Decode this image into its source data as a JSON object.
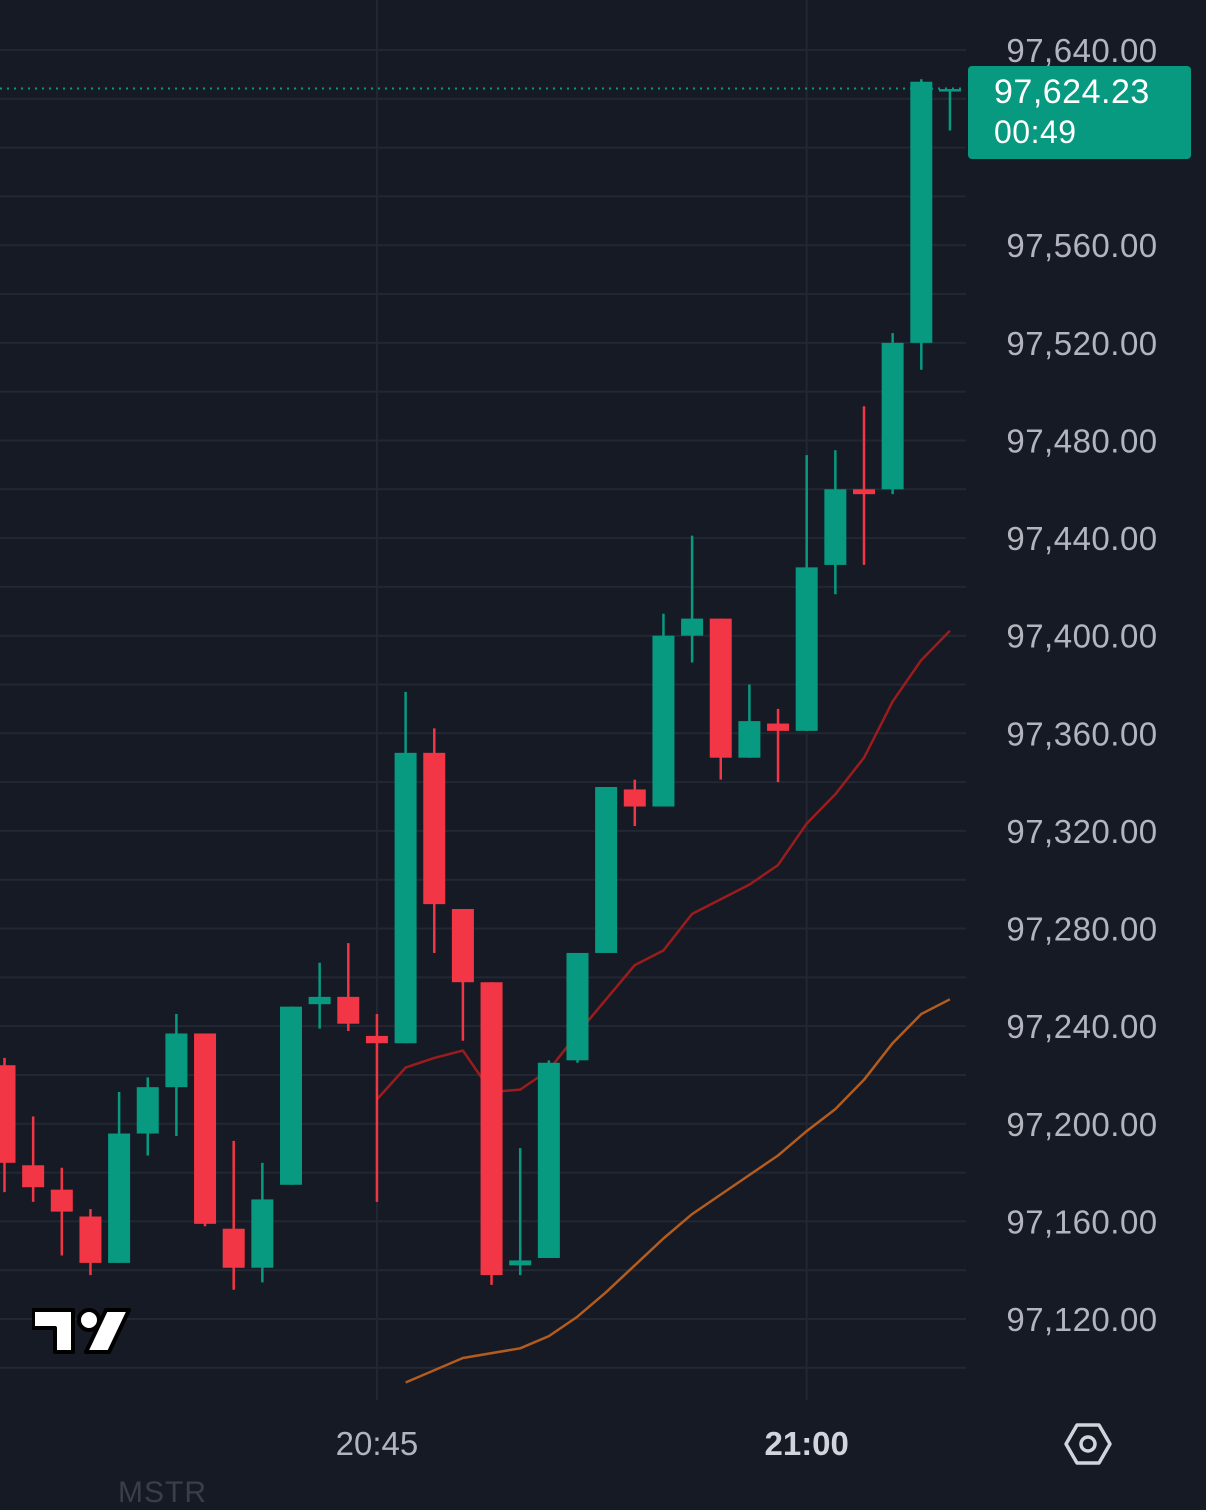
{
  "chart_data": {
    "type": "candlestick",
    "interval_minutes": 1,
    "x_ticks": [
      {
        "label": "20:45",
        "bold": false
      },
      {
        "label": "21:00",
        "bold": true
      }
    ],
    "y_axis": {
      "ylim": [
        97083,
        97651
      ],
      "ticks": [
        "97,120.00",
        "97,160.00",
        "97,200.00",
        "97,240.00",
        "97,280.00",
        "97,320.00",
        "97,360.00",
        "97,400.00",
        "97,440.00",
        "97,480.00",
        "97,520.00",
        "97,560.00",
        "97,640.00"
      ],
      "tick_values": [
        97120,
        97160,
        97200,
        97240,
        97280,
        97320,
        97360,
        97400,
        97440,
        97480,
        97520,
        97560,
        97640
      ]
    },
    "last_price": "97,624.23",
    "countdown": "00:49",
    "colors": {
      "up": "#089981",
      "down": "#f23645",
      "background": "#161a25",
      "grid": "#262a36",
      "ma_fast": "#9b1c1c",
      "ma_slow": "#b35c1e"
    },
    "candles": [
      {
        "t": "20:32",
        "o": 97224,
        "h": 97227,
        "l": 97172,
        "c": 97184
      },
      {
        "t": "20:33",
        "o": 97183,
        "h": 97203,
        "l": 97168,
        "c": 97174
      },
      {
        "t": "20:34",
        "o": 97173,
        "h": 97182,
        "l": 97146,
        "c": 97164
      },
      {
        "t": "20:35",
        "o": 97162,
        "h": 97165,
        "l": 97138,
        "c": 97143
      },
      {
        "t": "20:36",
        "o": 97143,
        "h": 97213,
        "l": 97143,
        "c": 97196
      },
      {
        "t": "20:37",
        "o": 97196,
        "h": 97219,
        "l": 97187,
        "c": 97215
      },
      {
        "t": "20:38",
        "o": 97215,
        "h": 97245,
        "l": 97195,
        "c": 97237
      },
      {
        "t": "20:39",
        "o": 97237,
        "h": 97237,
        "l": 97158,
        "c": 97159
      },
      {
        "t": "20:40",
        "o": 97157,
        "h": 97193,
        "l": 97132,
        "c": 97141
      },
      {
        "t": "20:41",
        "o": 97141,
        "h": 97184,
        "l": 97135,
        "c": 97169
      },
      {
        "t": "20:42",
        "o": 97175,
        "h": 97248,
        "l": 97175,
        "c": 97248
      },
      {
        "t": "20:43",
        "o": 97249,
        "h": 97266,
        "l": 97239,
        "c": 97252
      },
      {
        "t": "20:44",
        "o": 97252,
        "h": 97274,
        "l": 97238,
        "c": 97241
      },
      {
        "t": "20:45",
        "o": 97236,
        "h": 97245,
        "l": 97168,
        "c": 97233
      },
      {
        "t": "20:46",
        "o": 97233,
        "h": 97377,
        "l": 97233,
        "c": 97352
      },
      {
        "t": "20:47",
        "o": 97352,
        "h": 97362,
        "l": 97270,
        "c": 97290
      },
      {
        "t": "20:48",
        "o": 97288,
        "h": 97288,
        "l": 97234,
        "c": 97258
      },
      {
        "t": "20:49",
        "o": 97258,
        "h": 97258,
        "l": 97134,
        "c": 97138
      },
      {
        "t": "20:50",
        "o": 97142,
        "h": 97190,
        "l": 97138,
        "c": 97144
      },
      {
        "t": "20:51",
        "o": 97145,
        "h": 97226,
        "l": 97145,
        "c": 97225
      },
      {
        "t": "20:52",
        "o": 97226,
        "h": 97270,
        "l": 97225,
        "c": 97270
      },
      {
        "t": "20:53",
        "o": 97270,
        "h": 97338,
        "l": 97270,
        "c": 97338
      },
      {
        "t": "20:54",
        "o": 97337,
        "h": 97341,
        "l": 97322,
        "c": 97330
      },
      {
        "t": "20:55",
        "o": 97330,
        "h": 97409,
        "l": 97330,
        "c": 97400
      },
      {
        "t": "20:56",
        "o": 97400,
        "h": 97441,
        "l": 97389,
        "c": 97407
      },
      {
        "t": "20:57",
        "o": 97407,
        "h": 97407,
        "l": 97341,
        "c": 97350
      },
      {
        "t": "20:58",
        "o": 97350,
        "h": 97380,
        "l": 97350,
        "c": 97365
      },
      {
        "t": "20:59",
        "o": 97364,
        "h": 97370,
        "l": 97340,
        "c": 97361
      },
      {
        "t": "21:00",
        "o": 97361,
        "h": 97474,
        "l": 97361,
        "c": 97428
      },
      {
        "t": "21:01",
        "o": 97429,
        "h": 97476,
        "l": 97417,
        "c": 97460
      },
      {
        "t": "21:02",
        "o": 97460,
        "h": 97494,
        "l": 97429,
        "c": 97458
      },
      {
        "t": "21:03",
        "o": 97460,
        "h": 97524,
        "l": 97458,
        "c": 97520
      },
      {
        "t": "21:04",
        "o": 97520,
        "h": 97628,
        "l": 97509,
        "c": 97627
      },
      {
        "t": "21:05",
        "o": 97624,
        "h": 97624,
        "l": 97607,
        "c": 97624
      }
    ],
    "ma_fast": [
      {
        "t": "20:45",
        "v": 97210
      },
      {
        "t": "20:46",
        "v": 97223
      },
      {
        "t": "20:47",
        "v": 97227
      },
      {
        "t": "20:48",
        "v": 97230
      },
      {
        "t": "20:49",
        "v": 97213
      },
      {
        "t": "20:50",
        "v": 97214
      },
      {
        "t": "20:51",
        "v": 97222
      },
      {
        "t": "20:52",
        "v": 97237
      },
      {
        "t": "20:53",
        "v": 97251
      },
      {
        "t": "20:54",
        "v": 97265
      },
      {
        "t": "20:55",
        "v": 97271
      },
      {
        "t": "20:56",
        "v": 97286
      },
      {
        "t": "20:57",
        "v": 97292
      },
      {
        "t": "20:58",
        "v": 97298
      },
      {
        "t": "20:59",
        "v": 97306
      },
      {
        "t": "21:00",
        "v": 97323
      },
      {
        "t": "21:01",
        "v": 97335
      },
      {
        "t": "21:02",
        "v": 97350
      },
      {
        "t": "21:03",
        "v": 97373
      },
      {
        "t": "21:04",
        "v": 97390
      },
      {
        "t": "21:05",
        "v": 97402
      }
    ],
    "ma_slow": [
      {
        "t": "20:46",
        "v": 97094
      },
      {
        "t": "20:48",
        "v": 97104
      },
      {
        "t": "20:50",
        "v": 97108
      },
      {
        "t": "20:51",
        "v": 97113
      },
      {
        "t": "20:52",
        "v": 97121
      },
      {
        "t": "20:53",
        "v": 97131
      },
      {
        "t": "20:54",
        "v": 97142
      },
      {
        "t": "20:55",
        "v": 97153
      },
      {
        "t": "20:56",
        "v": 97163
      },
      {
        "t": "20:57",
        "v": 97171
      },
      {
        "t": "20:58",
        "v": 97179
      },
      {
        "t": "20:59",
        "v": 97187
      },
      {
        "t": "21:00",
        "v": 97197
      },
      {
        "t": "21:01",
        "v": 97206
      },
      {
        "t": "21:02",
        "v": 97218
      },
      {
        "t": "21:03",
        "v": 97233
      },
      {
        "t": "21:04",
        "v": 97245
      },
      {
        "t": "21:05",
        "v": 97251
      }
    ]
  },
  "symbol": "MSTR",
  "icons": {
    "logo": "tradingview-logo",
    "settings": "settings-hexagon-icon"
  }
}
